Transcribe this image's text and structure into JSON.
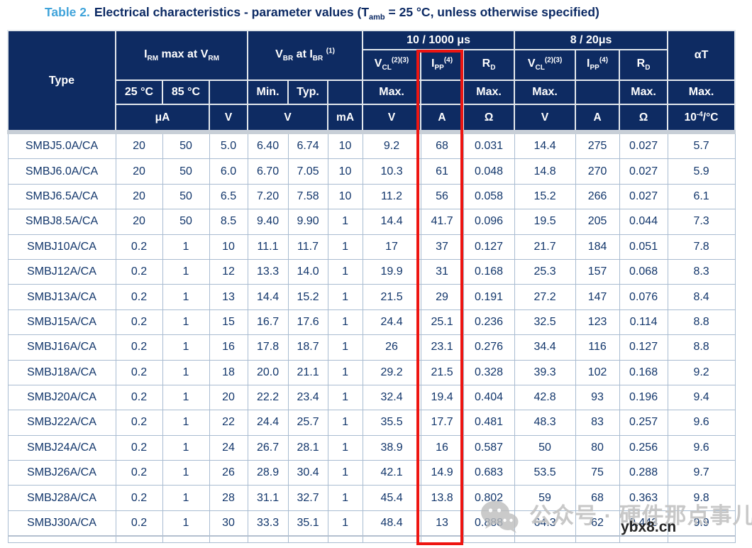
{
  "title": {
    "label": "Table 2.",
    "text_html": "Electrical characteristics - parameter values (T<sub>amb</sub> = 25 °C, unless otherwise specified)"
  },
  "colors": {
    "header_bg": "#0e2b62",
    "title_accent": "#3fa3da",
    "body_text": "#12366b",
    "grid_line": "#a9bcd1",
    "separator_band": "#c8cfd7",
    "highlight_red": "#ee1511",
    "watermark_gray": "#c3c3c3",
    "watermark_dark": "#262626"
  },
  "table": {
    "header": {
      "type_label": "Type",
      "group_irm_html": "I<sub>RM</sub> max at V<sub>RM</sub>",
      "group_vbr_html": "V<sub>BR</sub> at I<sub>BR</sub> <sup>(1)</sup>",
      "group_surge_long": "10 / 1000 μs",
      "group_surge_short": "8 / 20μs",
      "alpha_t": "αT",
      "vcl_html": "V<sub>CL</sub><sup>(2)(3)</sup>",
      "ipp_html": "I<sub>PP</sub><sup>(4)</sup>",
      "rd_html": "R<sub>D</sub>",
      "t25": "25 °C",
      "t85": "85 °C",
      "min_label": "Min.",
      "typ_label": "Typ.",
      "max_label": "Max.",
      "units": {
        "uA": "μA",
        "V": "V",
        "mA": "mA",
        "A": "A",
        "ohm": "Ω",
        "alpha_unit_html": "10<sup>-4</sup>/°C"
      }
    },
    "rows": [
      {
        "type": "SMBJ5.0A/CA",
        "values": [
          "20",
          "50",
          "5.0",
          "6.40",
          "6.74",
          "10",
          "9.2",
          "68",
          "0.031",
          "14.4",
          "275",
          "0.027",
          "5.7"
        ]
      },
      {
        "type": "SMBJ6.0A/CA",
        "values": [
          "20",
          "50",
          "6.0",
          "6.70",
          "7.05",
          "10",
          "10.3",
          "61",
          "0.048",
          "14.8",
          "270",
          "0.027",
          "5.9"
        ]
      },
      {
        "type": "SMBJ6.5A/CA",
        "values": [
          "20",
          "50",
          "6.5",
          "7.20",
          "7.58",
          "10",
          "11.2",
          "56",
          "0.058",
          "15.2",
          "266",
          "0.027",
          "6.1"
        ]
      },
      {
        "type": "SMBJ8.5A/CA",
        "values": [
          "20",
          "50",
          "8.5",
          "9.40",
          "9.90",
          "1",
          "14.4",
          "41.7",
          "0.096",
          "19.5",
          "205",
          "0.044",
          "7.3"
        ]
      },
      {
        "type": "SMBJ10A/CA",
        "values": [
          "0.2",
          "1",
          "10",
          "11.1",
          "11.7",
          "1",
          "17",
          "37",
          "0.127",
          "21.7",
          "184",
          "0.051",
          "7.8"
        ]
      },
      {
        "type": "SMBJ12A/CA",
        "values": [
          "0.2",
          "1",
          "12",
          "13.3",
          "14.0",
          "1",
          "19.9",
          "31",
          "0.168",
          "25.3",
          "157",
          "0.068",
          "8.3"
        ]
      },
      {
        "type": "SMBJ13A/CA",
        "values": [
          "0.2",
          "1",
          "13",
          "14.4",
          "15.2",
          "1",
          "21.5",
          "29",
          "0.191",
          "27.2",
          "147",
          "0.076",
          "8.4"
        ]
      },
      {
        "type": "SMBJ15A/CA",
        "values": [
          "0.2",
          "1",
          "15",
          "16.7",
          "17.6",
          "1",
          "24.4",
          "25.1",
          "0.236",
          "32.5",
          "123",
          "0.114",
          "8.8"
        ]
      },
      {
        "type": "SMBJ16A/CA",
        "values": [
          "0.2",
          "1",
          "16",
          "17.8",
          "18.7",
          "1",
          "26",
          "23.1",
          "0.276",
          "34.4",
          "116",
          "0.127",
          "8.8"
        ]
      },
      {
        "type": "SMBJ18A/CA",
        "values": [
          "0.2",
          "1",
          "18",
          "20.0",
          "21.1",
          "1",
          "29.2",
          "21.5",
          "0.328",
          "39.3",
          "102",
          "0.168",
          "9.2"
        ]
      },
      {
        "type": "SMBJ20A/CA",
        "values": [
          "0.2",
          "1",
          "20",
          "22.2",
          "23.4",
          "1",
          "32.4",
          "19.4",
          "0.404",
          "42.8",
          "93",
          "0.196",
          "9.4"
        ]
      },
      {
        "type": "SMBJ22A/CA",
        "values": [
          "0.2",
          "1",
          "22",
          "24.4",
          "25.7",
          "1",
          "35.5",
          "17.7",
          "0.481",
          "48.3",
          "83",
          "0.257",
          "9.6"
        ]
      },
      {
        "type": "SMBJ24A/CA",
        "values": [
          "0.2",
          "1",
          "24",
          "26.7",
          "28.1",
          "1",
          "38.9",
          "16",
          "0.587",
          "50",
          "80",
          "0.256",
          "9.6"
        ]
      },
      {
        "type": "SMBJ26A/CA",
        "values": [
          "0.2",
          "1",
          "26",
          "28.9",
          "30.4",
          "1",
          "42.1",
          "14.9",
          "0.683",
          "53.5",
          "75",
          "0.288",
          "9.7"
        ]
      },
      {
        "type": "SMBJ28A/CA",
        "values": [
          "0.2",
          "1",
          "28",
          "31.1",
          "32.7",
          "1",
          "45.4",
          "13.8",
          "0.802",
          "59",
          "68",
          "0.363",
          "9.8"
        ]
      },
      {
        "type": "SMBJ30A/CA",
        "values": [
          "0.2",
          "1",
          "30",
          "33.3",
          "35.1",
          "1",
          "48.4",
          "13",
          "0.888",
          "64.3",
          "62",
          "0.443",
          "9.9"
        ]
      }
    ]
  },
  "watermark": {
    "logo": "wechat-icon",
    "text": "公众号 · 硬件那点事儿",
    "site": "ybx8.cn"
  }
}
